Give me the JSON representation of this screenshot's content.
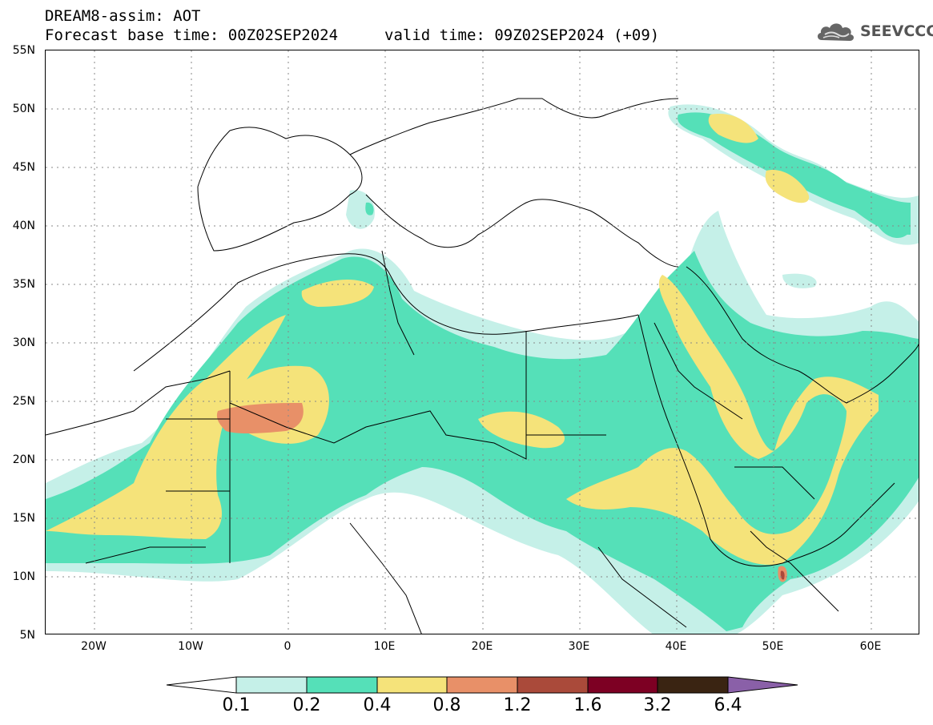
{
  "header": {
    "title": "DREAM8-assim: AOT",
    "base_time": "Forecast base time: 00Z02SEP2024",
    "valid_time": "valid time: 09Z02SEP2024 (+09)"
  },
  "logo": {
    "text": "SEEVCCC",
    "icon": "cloud-icon"
  },
  "map": {
    "projection": "lat-lon",
    "lon_range": [
      -25,
      65
    ],
    "lat_range": [
      5,
      55
    ],
    "lat_labels": [
      "55N",
      "50N",
      "45N",
      "40N",
      "35N",
      "30N",
      "25N",
      "20N",
      "15N",
      "10N",
      "5N"
    ],
    "lon_labels": [
      "20W",
      "10W",
      "0",
      "10E",
      "20E",
      "30E",
      "40E",
      "50E",
      "60E"
    ],
    "gridlines": "dotted"
  },
  "colorbar": {
    "levels": [
      "0.1",
      "0.2",
      "0.4",
      "0.8",
      "1.2",
      "1.6",
      "3.2",
      "6.4"
    ],
    "colors": [
      "#ffffff",
      "#c5f0e8",
      "#55e0b8",
      "#f5e37a",
      "#e89068",
      "#aa4a3a",
      "#7d0023",
      "#3a2412",
      "#8a60a8"
    ]
  }
}
